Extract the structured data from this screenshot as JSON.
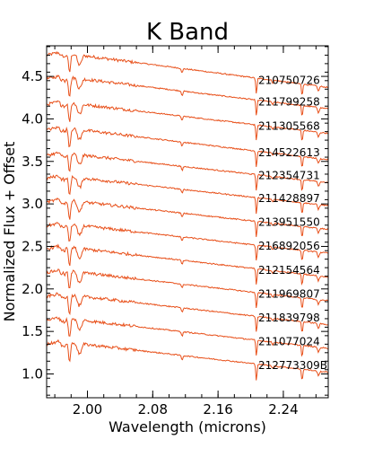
{
  "chart_data": {
    "type": "line",
    "title": "K Band",
    "xlabel": "Wavelength (microns)",
    "ylabel": "Normalized Flux + Offset",
    "xlim": [
      1.95,
      2.295
    ],
    "ylim": [
      0.72,
      4.86
    ],
    "x_ticks": [
      2.0,
      2.08,
      2.16,
      2.24
    ],
    "x_tick_labels": [
      "2.00",
      "2.08",
      "2.16",
      "2.24"
    ],
    "y_ticks": [
      1.0,
      1.5,
      2.0,
      2.5,
      3.0,
      3.5,
      4.0,
      4.5
    ],
    "y_tick_labels": [
      "1.0",
      "1.5",
      "2.0",
      "2.5",
      "3.0",
      "3.5",
      "4.0",
      "4.5"
    ],
    "grid": false,
    "line_color": "#e8501a",
    "series": [
      {
        "name": "210750726",
        "start_flux": 4.8,
        "end_flux": 4.37
      },
      {
        "name": "211799258",
        "start_flux": 4.52,
        "end_flux": 4.12
      },
      {
        "name": "211305568",
        "start_flux": 4.22,
        "end_flux": 3.83
      },
      {
        "name": "214522613",
        "start_flux": 3.92,
        "end_flux": 3.52
      },
      {
        "name": "212354731",
        "start_flux": 3.62,
        "end_flux": 3.25
      },
      {
        "name": "211428897",
        "start_flux": 3.35,
        "end_flux": 2.98
      },
      {
        "name": "213951550",
        "start_flux": 3.07,
        "end_flux": 2.7
      },
      {
        "name": "216892056",
        "start_flux": 2.79,
        "end_flux": 2.42
      },
      {
        "name": "212154564",
        "start_flux": 2.52,
        "end_flux": 2.14
      },
      {
        "name": "211969807",
        "start_flux": 2.24,
        "end_flux": 1.86
      },
      {
        "name": "211839798",
        "start_flux": 1.96,
        "end_flux": 1.58
      },
      {
        "name": "211077024",
        "start_flux": 1.68,
        "end_flux": 1.3
      },
      {
        "name": "212773309B",
        "start_flux": 1.4,
        "end_flux": 1.02
      }
    ]
  }
}
